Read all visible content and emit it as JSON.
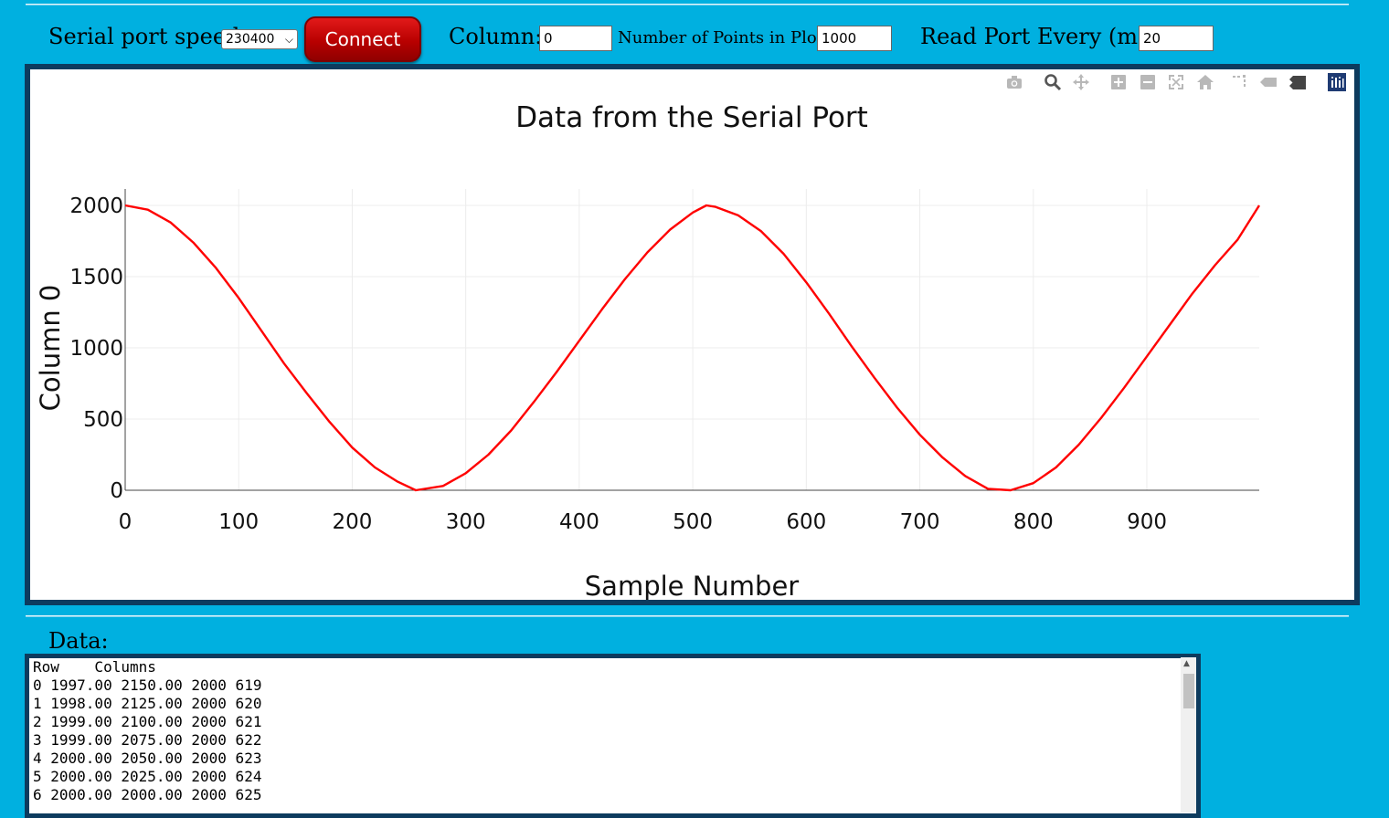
{
  "controls": {
    "speed_label": "Serial port speed:",
    "speed_value": "230400",
    "connect_label": "Connect",
    "column_label": "Column:",
    "column_value": "0",
    "points_label": "Number of Points in Plot:",
    "points_value": "1000",
    "read_label": "Read Port Every (ms):",
    "read_value": "20"
  },
  "modebar_icons": [
    "camera-icon",
    "zoom-icon",
    "pan-icon",
    "zoom-in-icon",
    "zoom-out-icon",
    "autoscale-icon",
    "home-icon",
    "spike-lines-icon",
    "hover-closest-icon",
    "hover-compare-icon",
    "plotly-logo-icon"
  ],
  "chart_data": {
    "type": "line",
    "title": "Data from the Serial Port",
    "xlabel": "Sample Number",
    "ylabel": "Column 0",
    "xlim": [
      0,
      999
    ],
    "ylim": [
      0,
      2000
    ],
    "xticks": [
      0,
      100,
      200,
      300,
      400,
      500,
      600,
      700,
      800,
      900
    ],
    "yticks": [
      0,
      500,
      1000,
      1500,
      2000
    ],
    "grid": true,
    "line_color": "#ff0000",
    "series": [
      {
        "x": [
          0,
          20,
          40,
          60,
          80,
          100,
          120,
          140,
          160,
          180,
          200,
          220,
          240,
          256,
          280,
          300,
          320,
          340,
          360,
          380,
          400,
          420,
          440,
          460,
          480,
          500,
          512,
          520,
          540,
          560,
          580,
          600,
          620,
          640,
          660,
          680,
          700,
          720,
          740,
          760,
          780,
          800,
          820,
          840,
          860,
          880,
          900,
          920,
          940,
          960,
          980,
          999
        ],
        "y": [
          2000,
          1970,
          1880,
          1740,
          1560,
          1350,
          1120,
          890,
          680,
          480,
          300,
          160,
          60,
          0,
          30,
          120,
          250,
          420,
          620,
          830,
          1050,
          1270,
          1480,
          1670,
          1830,
          1950,
          2000,
          1990,
          1930,
          1820,
          1660,
          1460,
          1240,
          1010,
          790,
          580,
          390,
          230,
          100,
          10,
          0,
          50,
          160,
          320,
          510,
          720,
          940,
          1160,
          1380,
          1580,
          1760,
          2000
        ]
      }
    ]
  },
  "data_panel": {
    "label": "Data:",
    "lines": [
      "Row    Columns",
      "0 1997.00 2150.00 2000 619",
      "1 1998.00 2125.00 2000 620",
      "2 1999.00 2100.00 2000 621",
      "3 1999.00 2075.00 2000 622",
      "4 2000.00 2050.00 2000 623",
      "5 2000.00 2025.00 2000 624",
      "6 2000.00 2000.00 2000 625"
    ]
  }
}
